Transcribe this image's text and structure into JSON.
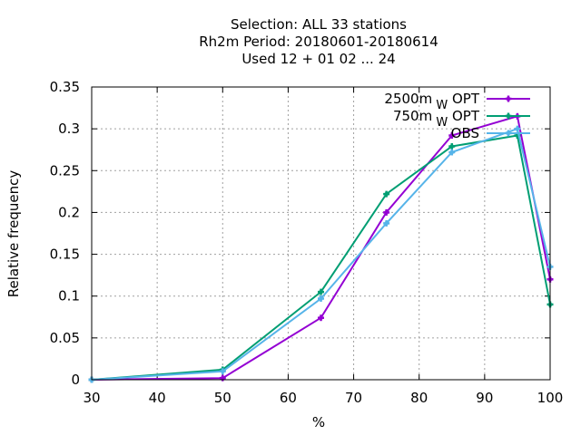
{
  "chart_data": {
    "type": "line",
    "title_lines": [
      "Selection: ALL      33 stations",
      "Rh2m  Period: 20180601-20180614",
      "Used  12 + 01 02 ... 24"
    ],
    "xlabel": "%",
    "ylabel": "Relative frequency",
    "xlim": [
      30,
      100
    ],
    "ylim": [
      0,
      0.35
    ],
    "x_ticks": [
      30,
      40,
      50,
      60,
      70,
      80,
      90,
      100
    ],
    "y_ticks": [
      0,
      0.05,
      0.1,
      0.15,
      0.2,
      0.25,
      0.3,
      0.35
    ],
    "x_tick_labels": [
      "30",
      "40",
      "50",
      "60",
      "70",
      "80",
      "90",
      "100"
    ],
    "y_tick_labels": [
      "0",
      "0.05",
      "0.1",
      "0.15",
      "0.2",
      "0.25",
      "0.3",
      "0.35"
    ],
    "grid": true,
    "legend_position": "top-right",
    "x": [
      30,
      50,
      65,
      75,
      85,
      95,
      100
    ],
    "series": [
      {
        "name": "2500m",
        "name_sub": "W",
        "name_suffix": "OPT",
        "color": "#9400d3",
        "marker": "plus",
        "values": [
          0,
          0.002,
          0.074,
          0.2,
          0.292,
          0.315,
          0.12
        ]
      },
      {
        "name": "750m",
        "name_sub": "W",
        "name_suffix": "OPT",
        "color": "#009e73",
        "marker": "plus",
        "values": [
          0,
          0.012,
          0.105,
          0.222,
          0.279,
          0.292,
          0.09
        ]
      },
      {
        "name": "OBS",
        "name_sub": "",
        "name_suffix": "",
        "color": "#56b4e9",
        "marker": "plus",
        "values": [
          0,
          0.01,
          0.097,
          0.187,
          0.272,
          0.3,
          0.135
        ]
      }
    ]
  }
}
